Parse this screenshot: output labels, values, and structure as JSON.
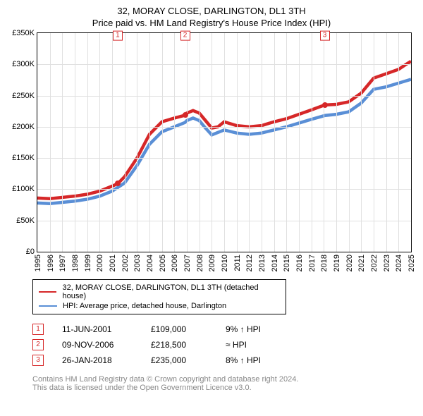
{
  "title": {
    "main": "32, MORAY CLOSE, DARLINGTON, DL1 3TH",
    "sub": "Price paid vs. HM Land Registry's House Price Index (HPI)"
  },
  "chart": {
    "type": "line",
    "background_color": "#ffffff",
    "grid_color": "#e0e0e0",
    "axis_color": "#000000",
    "label_fontsize": 11,
    "x": {
      "min": 1995,
      "max": 2025,
      "step": 1,
      "ticks": [
        1995,
        1996,
        1997,
        1998,
        1999,
        2000,
        2001,
        2002,
        2003,
        2004,
        2005,
        2006,
        2007,
        2008,
        2009,
        2010,
        2011,
        2012,
        2013,
        2014,
        2015,
        2016,
        2017,
        2018,
        2019,
        2020,
        2021,
        2022,
        2023,
        2024,
        2025
      ]
    },
    "y": {
      "min": 0,
      "max": 350000,
      "step": 50000,
      "ticks": [
        "£0",
        "£50K",
        "£100K",
        "£150K",
        "£200K",
        "£250K",
        "£300K",
        "£350K"
      ]
    },
    "series": [
      {
        "name": "32, MORAY CLOSE, DARLINGTON, DL1 3TH (detached house)",
        "color": "#d62728",
        "line_width": 1.5,
        "points": [
          [
            1995.0,
            86000
          ],
          [
            1996.0,
            85000
          ],
          [
            1997.0,
            87000
          ],
          [
            1998.0,
            89000
          ],
          [
            1999.0,
            92000
          ],
          [
            2000.0,
            97000
          ],
          [
            2001.0,
            105000
          ],
          [
            2001.45,
            109000
          ],
          [
            2002.0,
            120000
          ],
          [
            2003.0,
            150000
          ],
          [
            2004.0,
            188000
          ],
          [
            2005.0,
            208000
          ],
          [
            2006.0,
            214000
          ],
          [
            2006.86,
            218500
          ],
          [
            2007.0,
            222000
          ],
          [
            2007.5,
            226000
          ],
          [
            2008.0,
            222000
          ],
          [
            2008.5,
            210000
          ],
          [
            2009.0,
            198000
          ],
          [
            2009.5,
            200000
          ],
          [
            2010.0,
            208000
          ],
          [
            2011.0,
            202000
          ],
          [
            2012.0,
            200000
          ],
          [
            2013.0,
            202000
          ],
          [
            2014.0,
            208000
          ],
          [
            2015.0,
            213000
          ],
          [
            2016.0,
            220000
          ],
          [
            2017.0,
            227000
          ],
          [
            2018.07,
            235000
          ],
          [
            2019.0,
            236000
          ],
          [
            2020.0,
            240000
          ],
          [
            2021.0,
            254000
          ],
          [
            2022.0,
            278000
          ],
          [
            2023.0,
            285000
          ],
          [
            2024.0,
            292000
          ],
          [
            2024.6,
            300000
          ],
          [
            2025.0,
            305000
          ]
        ]
      },
      {
        "name": "HPI: Average price, detached house, Darlington",
        "color": "#5a8fd6",
        "line_width": 1.5,
        "points": [
          [
            1995.0,
            78000
          ],
          [
            1996.0,
            77000
          ],
          [
            1997.0,
            79000
          ],
          [
            1998.0,
            81000
          ],
          [
            1999.0,
            84000
          ],
          [
            2000.0,
            89000
          ],
          [
            2001.0,
            97000
          ],
          [
            2002.0,
            110000
          ],
          [
            2003.0,
            138000
          ],
          [
            2004.0,
            172000
          ],
          [
            2005.0,
            192000
          ],
          [
            2006.0,
            200000
          ],
          [
            2006.86,
            207000
          ],
          [
            2007.0,
            210000
          ],
          [
            2007.5,
            214000
          ],
          [
            2008.0,
            210000
          ],
          [
            2008.5,
            198000
          ],
          [
            2009.0,
            187000
          ],
          [
            2010.0,
            195000
          ],
          [
            2011.0,
            190000
          ],
          [
            2012.0,
            188000
          ],
          [
            2013.0,
            190000
          ],
          [
            2014.0,
            195000
          ],
          [
            2015.0,
            200000
          ],
          [
            2016.0,
            206000
          ],
          [
            2017.0,
            212000
          ],
          [
            2018.07,
            218000
          ],
          [
            2019.0,
            220000
          ],
          [
            2020.0,
            224000
          ],
          [
            2021.0,
            238000
          ],
          [
            2022.0,
            260000
          ],
          [
            2023.0,
            264000
          ],
          [
            2024.0,
            270000
          ],
          [
            2025.0,
            276000
          ]
        ]
      }
    ],
    "markers": [
      {
        "label": "1",
        "x": 2001.45,
        "y": 109000
      },
      {
        "label": "2",
        "x": 2006.86,
        "y": 218500
      },
      {
        "label": "3",
        "x": 2018.07,
        "y": 235000
      }
    ]
  },
  "legend": {
    "items": [
      {
        "color": "#d62728",
        "label": "32, MORAY CLOSE, DARLINGTON, DL1 3TH (detached house)"
      },
      {
        "color": "#5a8fd6",
        "label": "HPI: Average price, detached house, Darlington"
      }
    ]
  },
  "sales": [
    {
      "idx": "1",
      "date": "11-JUN-2001",
      "price": "£109,000",
      "diff": "9% ↑ HPI"
    },
    {
      "idx": "2",
      "date": "09-NOV-2006",
      "price": "£218,500",
      "diff": "≈ HPI"
    },
    {
      "idx": "3",
      "date": "26-JAN-2018",
      "price": "£235,000",
      "diff": "8% ↑ HPI"
    }
  ],
  "footer": {
    "line1": "Contains HM Land Registry data © Crown copyright and database right 2024.",
    "line2": "This data is licensed under the Open Government Licence v3.0."
  }
}
